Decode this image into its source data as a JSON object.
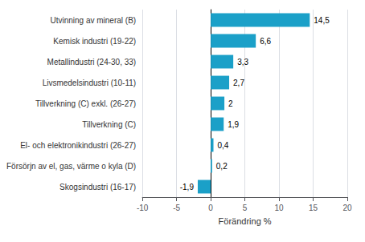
{
  "chart_data": {
    "type": "bar",
    "orientation": "horizontal",
    "categories": [
      "Skogsindustri (16-17)",
      "Försörjn av el, gas, värme o kyla (D)",
      "El- och elektronikindustri (26-27)",
      "Tillverkning (C)",
      "Tillverkning (C) exkl. (26-27)",
      "Livsmedelsindustri (10-11)",
      "Metallindustri (24-30, 33)",
      "Kemisk industri (19-22)",
      "Utvinning av mineral (B)"
    ],
    "values": [
      -1.9,
      0.2,
      0.4,
      1.9,
      2.0,
      2.7,
      3.3,
      6.6,
      14.5
    ],
    "value_labels": [
      "-1,9",
      "0,2",
      "0,4",
      "1,9",
      "2",
      "2,7",
      "3,3",
      "6,6",
      "14,5"
    ],
    "color": "#1ba0c8",
    "xlabel": "Förändring %",
    "xlim": [
      -10,
      20
    ],
    "xticks": [
      -10,
      -5,
      0,
      5,
      10,
      15,
      20
    ],
    "grid": true,
    "data_labels": true
  }
}
